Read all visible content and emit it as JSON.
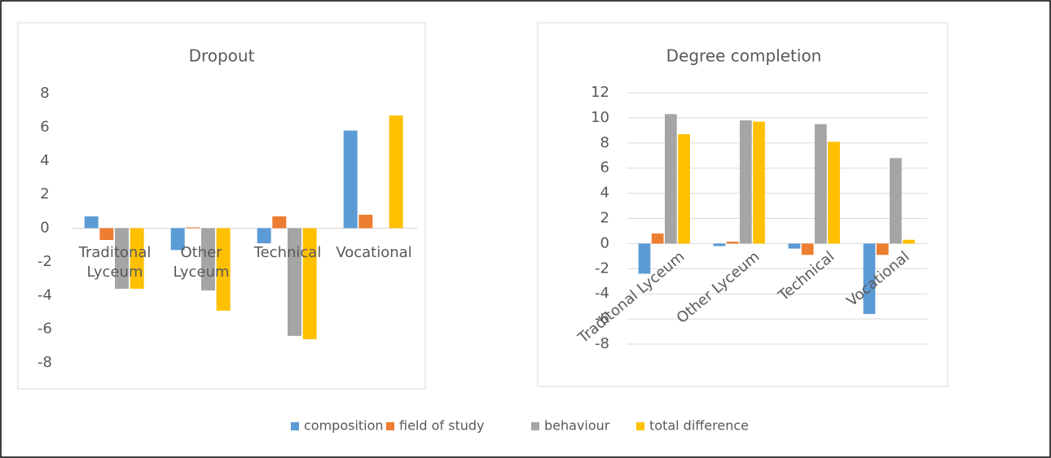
{
  "chart_data": [
    {
      "type": "bar",
      "title": "Dropout",
      "categories": [
        "Traditonal Lyceum",
        "Other Lyceum",
        "Technical",
        "Vocational"
      ],
      "series": [
        {
          "name": "composition",
          "color": "#5b9bd5",
          "values": [
            0.7,
            -1.3,
            -0.9,
            5.8
          ]
        },
        {
          "name": "field of study",
          "color": "#ed7d31",
          "values": [
            -0.7,
            0.05,
            0.7,
            0.8
          ]
        },
        {
          "name": "behaviour",
          "color": "#a5a5a5",
          "values": [
            -3.6,
            -3.7,
            -6.4,
            0
          ]
        },
        {
          "name": "total difference",
          "color": "#ffc000",
          "values": [
            -3.6,
            -4.9,
            -6.6,
            6.7
          ]
        }
      ],
      "ylim": [
        -8,
        8
      ],
      "yticks": [
        -8,
        -6,
        -4,
        -2,
        0,
        2,
        4,
        6,
        8
      ],
      "grid": false
    },
    {
      "type": "bar",
      "title": "Degree completion",
      "categories": [
        "Traditonal Lyceum",
        "Other Lyceum",
        "Technical",
        "Vocational"
      ],
      "series": [
        {
          "color": "#5b9bd5",
          "values": [
            -2.4,
            -0.2,
            -0.4,
            -5.6
          ]
        },
        {
          "color": "#ed7d31",
          "values": [
            0.8,
            0.15,
            -0.9,
            -0.9
          ]
        },
        {
          "color": "#a5a5a5",
          "values": [
            10.3,
            9.8,
            9.5,
            6.8
          ]
        },
        {
          "color": "#ffc000",
          "values": [
            8.7,
            9.7,
            8.1,
            0.3
          ]
        }
      ],
      "ylim": [
        -8,
        12
      ],
      "yticks": [
        -8,
        -6,
        -4,
        -2,
        0,
        2,
        4,
        6,
        8,
        10,
        12
      ],
      "grid": true
    }
  ]
}
